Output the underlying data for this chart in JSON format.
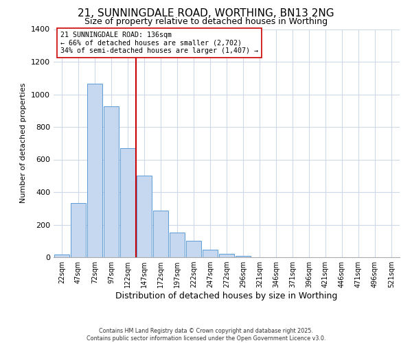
{
  "title": "21, SUNNINGDALE ROAD, WORTHING, BN13 2NG",
  "subtitle": "Size of property relative to detached houses in Worthing",
  "xlabel": "Distribution of detached houses by size in Worthing",
  "ylabel": "Number of detached properties",
  "bar_labels": [
    "22sqm",
    "47sqm",
    "72sqm",
    "97sqm",
    "122sqm",
    "147sqm",
    "172sqm",
    "197sqm",
    "222sqm",
    "247sqm",
    "272sqm",
    "296sqm",
    "321sqm",
    "346sqm",
    "371sqm",
    "396sqm",
    "421sqm",
    "446sqm",
    "471sqm",
    "496sqm",
    "521sqm"
  ],
  "bar_values": [
    18,
    333,
    1065,
    925,
    670,
    503,
    288,
    150,
    100,
    47,
    20,
    10,
    0,
    0,
    0,
    0,
    0,
    0,
    0,
    0,
    0
  ],
  "bar_color": "#c5d8f0",
  "bar_edge_color": "#5b9bd5",
  "vline_color": "#cc0000",
  "vline_x_index": 4.5,
  "annotation_text": "21 SUNNINGDALE ROAD: 136sqm\n← 66% of detached houses are smaller (2,702)\n34% of semi-detached houses are larger (1,407) →",
  "annotation_box_color": "#ffffff",
  "annotation_box_edge": "#cc0000",
  "ylim": [
    0,
    1400
  ],
  "yticks": [
    0,
    200,
    400,
    600,
    800,
    1000,
    1200,
    1400
  ],
  "bg_color": "#ffffff",
  "grid_color": "#ccd9e8",
  "footer1": "Contains HM Land Registry data © Crown copyright and database right 2025.",
  "footer2": "Contains public sector information licensed under the Open Government Licence v3.0.",
  "title_fontsize": 11,
  "subtitle_fontsize": 9,
  "ylabel_fontsize": 8,
  "xlabel_fontsize": 9
}
